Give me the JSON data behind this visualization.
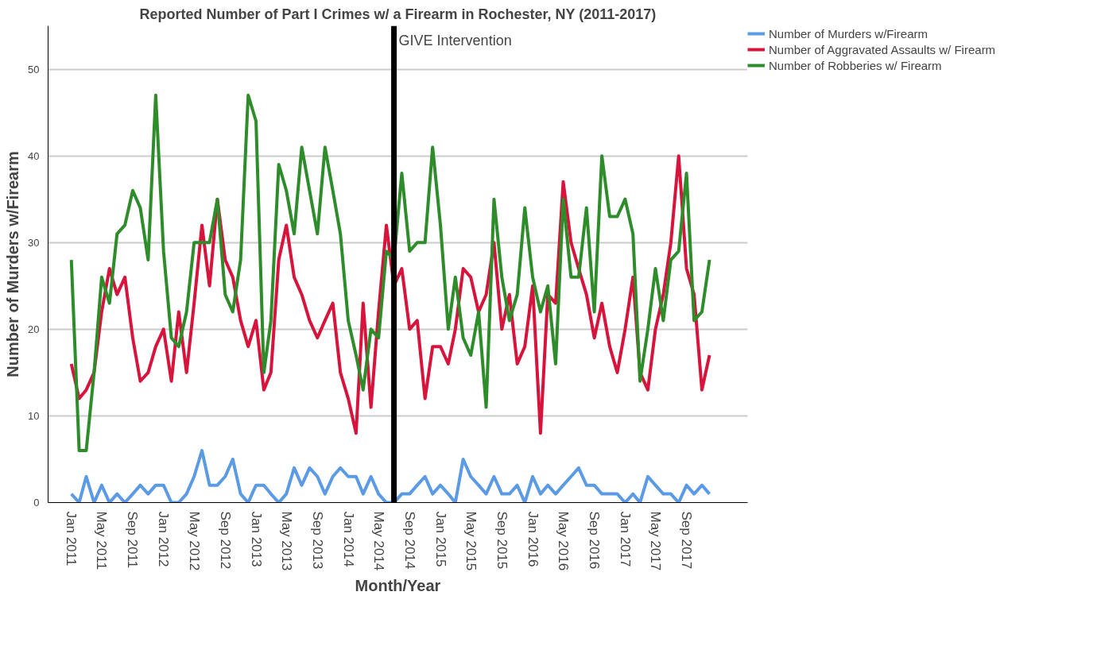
{
  "chart_data": {
    "type": "line",
    "title": "Reported Number of Part I Crimes w/ a Firearm in Rochester, NY (2011-2017)",
    "xlabel": "Month/Year",
    "ylabel": "Number of Murders w/Firearm",
    "x": [
      "2011-01",
      "2011-02",
      "2011-03",
      "2011-04",
      "2011-05",
      "2011-06",
      "2011-07",
      "2011-08",
      "2011-09",
      "2011-10",
      "2011-11",
      "2011-12",
      "2012-01",
      "2012-02",
      "2012-03",
      "2012-04",
      "2012-05",
      "2012-06",
      "2012-07",
      "2012-08",
      "2012-09",
      "2012-10",
      "2012-11",
      "2012-12",
      "2013-01",
      "2013-02",
      "2013-03",
      "2013-04",
      "2013-05",
      "2013-06",
      "2013-07",
      "2013-08",
      "2013-09",
      "2013-10",
      "2013-11",
      "2013-12",
      "2014-01",
      "2014-02",
      "2014-03",
      "2014-04",
      "2014-05",
      "2014-06",
      "2014-07",
      "2014-08",
      "2014-09",
      "2014-10",
      "2014-11",
      "2014-12",
      "2015-01",
      "2015-02",
      "2015-03",
      "2015-04",
      "2015-05",
      "2015-06",
      "2015-07",
      "2015-08",
      "2015-09",
      "2015-10",
      "2015-11",
      "2015-12",
      "2016-01",
      "2016-02",
      "2016-03",
      "2016-04",
      "2016-05",
      "2016-06",
      "2016-07",
      "2016-08",
      "2016-09",
      "2016-10",
      "2016-11",
      "2016-12",
      "2017-01",
      "2017-02",
      "2017-03",
      "2017-04",
      "2017-05",
      "2017-06",
      "2017-07",
      "2017-08",
      "2017-09",
      "2017-10",
      "2017-11",
      "2017-12"
    ],
    "series": [
      {
        "name": "Number of Murders w/Firearm",
        "color": "#5b9be6",
        "values": [
          1,
          0,
          3,
          0,
          2,
          0,
          1,
          0,
          1,
          2,
          1,
          2,
          2,
          0,
          0,
          1,
          3,
          6,
          2,
          2,
          3,
          5,
          1,
          0,
          2,
          2,
          1,
          0,
          1,
          4,
          2,
          4,
          3,
          1,
          3,
          4,
          3,
          3,
          1,
          3,
          1,
          0,
          0,
          1,
          1,
          2,
          3,
          1,
          2,
          1,
          0,
          5,
          3,
          2,
          1,
          3,
          1,
          1,
          2,
          0,
          3,
          1,
          2,
          1,
          2,
          3,
          4,
          2,
          2,
          1,
          1,
          1,
          0,
          1,
          0,
          3,
          2,
          1,
          1,
          0,
          2,
          1,
          2,
          1
        ]
      },
      {
        "name": "Number of Aggravated Assaults w/ Firearm",
        "color": "#d6143c",
        "values": [
          16,
          12,
          13,
          15,
          22,
          27,
          24,
          26,
          19,
          14,
          15,
          18,
          20,
          14,
          22,
          15,
          23,
          32,
          25,
          35,
          28,
          26,
          21,
          18,
          21,
          13,
          15,
          28,
          32,
          26,
          24,
          21,
          19,
          21,
          23,
          15,
          12,
          8,
          23,
          11,
          22,
          32,
          25,
          27,
          20,
          21,
          12,
          18,
          18,
          16,
          20,
          27,
          26,
          22,
          24,
          30,
          20,
          24,
          16,
          18,
          25,
          8,
          24,
          23,
          37,
          30,
          27,
          24,
          19,
          23,
          18,
          15,
          20,
          26,
          15,
          13,
          20,
          24,
          30,
          40,
          27,
          24,
          13,
          17
        ]
      },
      {
        "name": "Number of Robberies w/ Firearm",
        "color": "#2f8c2a",
        "values": [
          28,
          6,
          6,
          15,
          26,
          23,
          31,
          32,
          36,
          34,
          28,
          47,
          29,
          19,
          18,
          22,
          30,
          30,
          30,
          35,
          24,
          22,
          28,
          47,
          44,
          15,
          21,
          39,
          36,
          31,
          41,
          36,
          31,
          41,
          36,
          31,
          21,
          17,
          13,
          20,
          19,
          29,
          28,
          38,
          29,
          30,
          30,
          41,
          32,
          20,
          26,
          19,
          17,
          22,
          11,
          35,
          26,
          21,
          24,
          34,
          26,
          22,
          25,
          16,
          35,
          26,
          26,
          34,
          22,
          40,
          33,
          33,
          35,
          31,
          14,
          20,
          27,
          21,
          28,
          29,
          38,
          21,
          22,
          28
        ]
      }
    ],
    "xlim": [
      "2010-10",
      "2018-05"
    ],
    "xticks": [
      {
        "value": "2011-01",
        "label": "Jan 2011"
      },
      {
        "value": "2011-05",
        "label": "May 2011"
      },
      {
        "value": "2011-09",
        "label": "Sep 2011"
      },
      {
        "value": "2012-01",
        "label": "Jan 2012"
      },
      {
        "value": "2012-05",
        "label": "May 2012"
      },
      {
        "value": "2012-09",
        "label": "Sep 2012"
      },
      {
        "value": "2013-01",
        "label": "Jan 2013"
      },
      {
        "value": "2013-05",
        "label": "May 2013"
      },
      {
        "value": "2013-09",
        "label": "Sep 2013"
      },
      {
        "value": "2014-01",
        "label": "Jan 2014"
      },
      {
        "value": "2014-05",
        "label": "May 2014"
      },
      {
        "value": "2014-09",
        "label": "Sep 2014"
      },
      {
        "value": "2015-01",
        "label": "Jan 2015"
      },
      {
        "value": "2015-05",
        "label": "May 2015"
      },
      {
        "value": "2015-09",
        "label": "Sep 2015"
      },
      {
        "value": "2016-01",
        "label": "Jan 2016"
      },
      {
        "value": "2016-05",
        "label": "May 2016"
      },
      {
        "value": "2016-09",
        "label": "Sep 2016"
      },
      {
        "value": "2017-01",
        "label": "Jan 2017"
      },
      {
        "value": "2017-05",
        "label": "May 2017"
      },
      {
        "value": "2017-09",
        "label": "Sep 2017"
      }
    ],
    "ylim": [
      0,
      55
    ],
    "yticks": [
      0,
      10,
      20,
      30,
      40,
      50
    ],
    "ref_lines": [
      {
        "axis": "x",
        "value": "2014-07",
        "label": "GIVE Intervention",
        "color": "#000000"
      }
    ],
    "grid": "y",
    "legend": "right",
    "line_style": "solid"
  }
}
